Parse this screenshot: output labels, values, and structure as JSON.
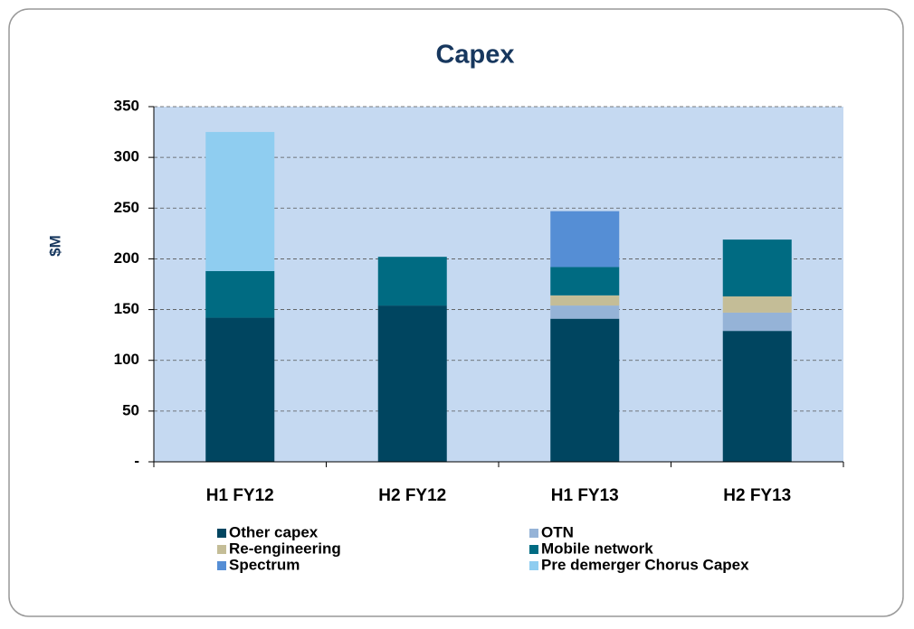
{
  "chart_data": {
    "type": "stacked_bar",
    "title": "Capex",
    "y_label": "$M",
    "categories": [
      "H1 FY12",
      "H2 FY12",
      "H1 FY13",
      "H2 FY13"
    ],
    "series": [
      {
        "name": "Other capex",
        "color": "#004560",
        "values": [
          142,
          154,
          141,
          129
        ]
      },
      {
        "name": "OTN",
        "color": "#95b3d7",
        "values": [
          null,
          null,
          13,
          18
        ]
      },
      {
        "name": "Re-engineering",
        "color": "#c4bd97",
        "values": [
          null,
          null,
          10,
          16
        ]
      },
      {
        "name": "Mobile network",
        "color": "#006b82",
        "values": [
          46,
          48,
          28,
          56
        ]
      },
      {
        "name": "Spectrum",
        "color": "#558ed5",
        "values": [
          null,
          null,
          55,
          null
        ]
      },
      {
        "name": "Pre demerger Chorus Capex",
        "color": "#8fcdf0",
        "values": [
          137,
          null,
          null,
          null
        ]
      }
    ],
    "ylim": [
      0,
      350
    ],
    "yticks": [
      {
        "value": 0,
        "label": "-"
      },
      50,
      100,
      150,
      200,
      250,
      300,
      350
    ],
    "grid": true
  }
}
